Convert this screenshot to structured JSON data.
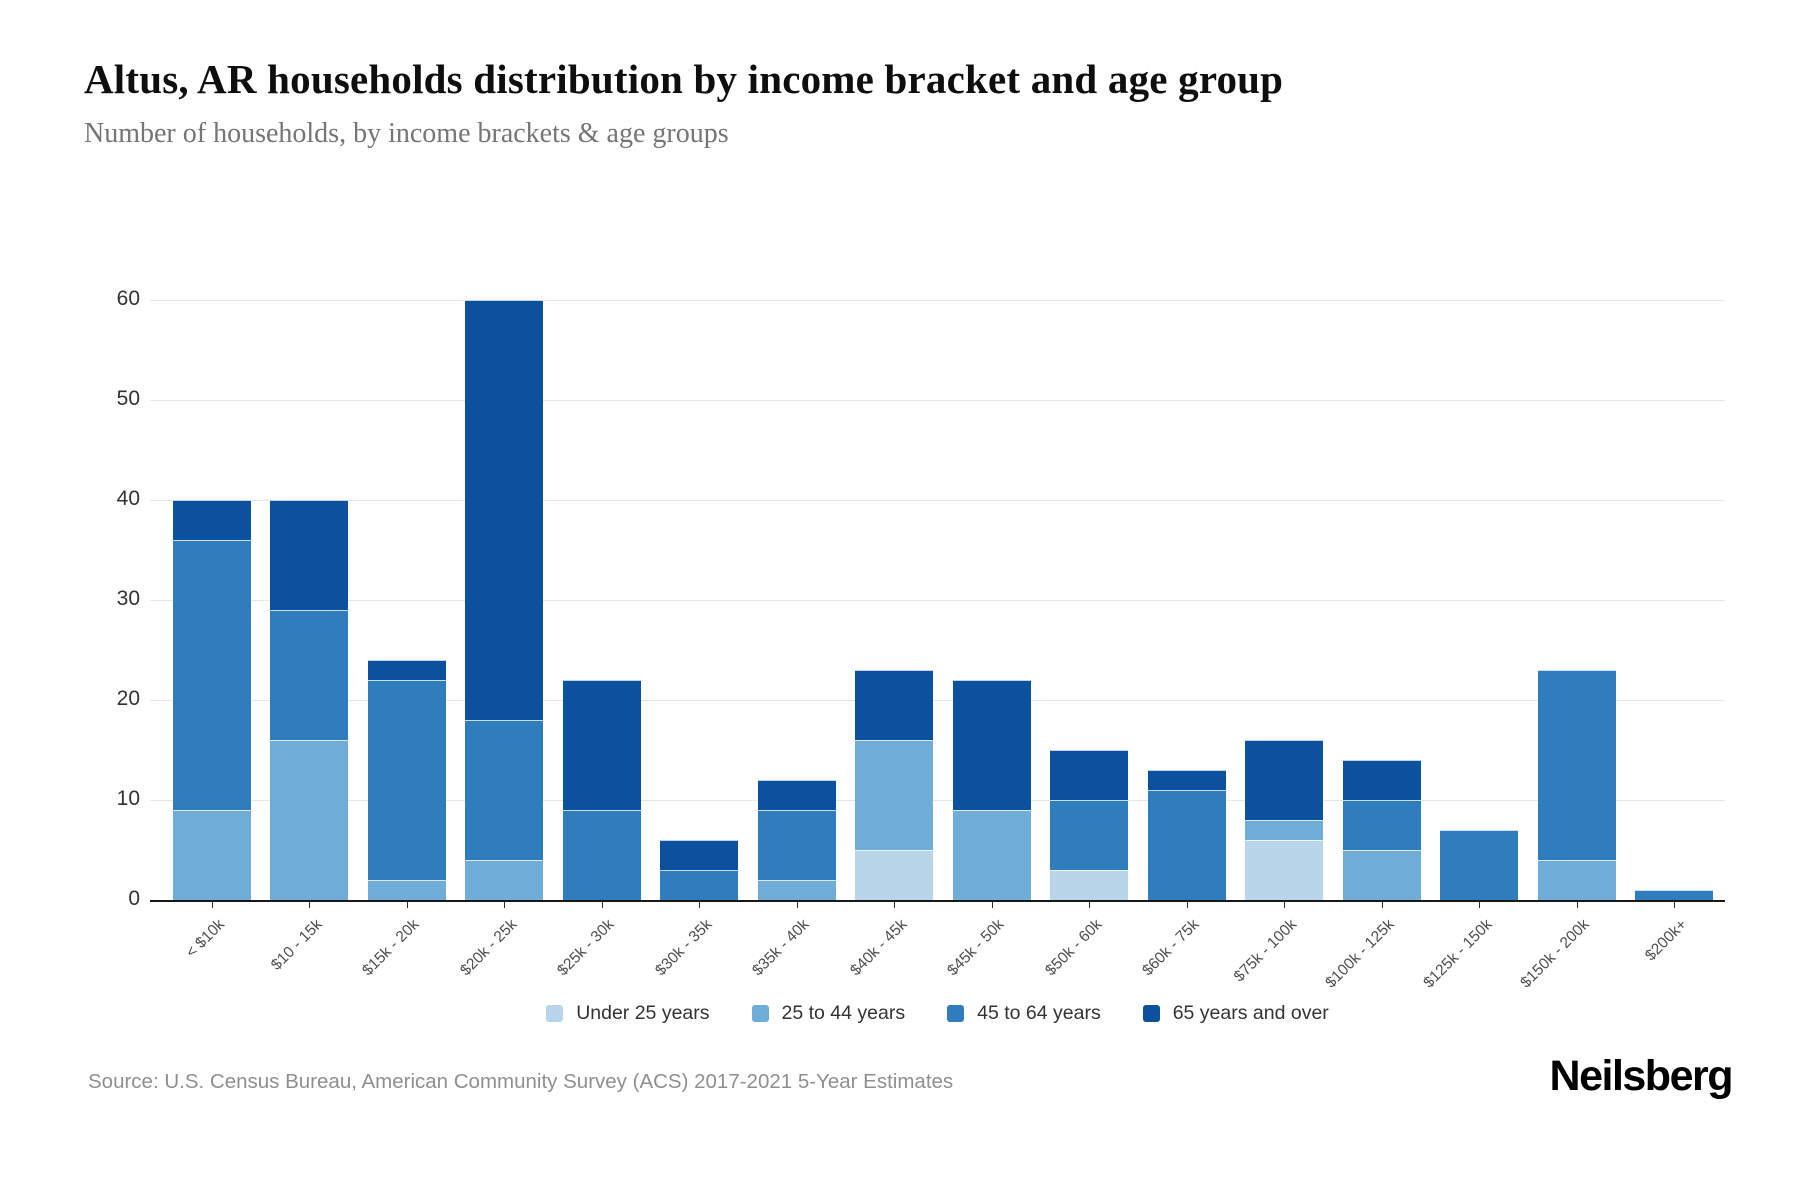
{
  "header": {
    "title": "Altus, AR households distribution by income bracket and age group",
    "subtitle": "Number of households, by income brackets & age groups"
  },
  "chart_data": {
    "type": "bar",
    "stacked": true,
    "title": "Altus, AR households distribution by income bracket and age group",
    "xlabel": "",
    "ylabel": "",
    "ylim": [
      0,
      60
    ],
    "yticks": [
      0,
      10,
      20,
      30,
      40,
      50,
      60
    ],
    "grid": true,
    "legend_position": "bottom",
    "categories": [
      "< $10k",
      "$10 - 15k",
      "$15k - 20k",
      "$20k - 25k",
      "$25k - 30k",
      "$30k - 35k",
      "$35k - 40k",
      "$40k - 45k",
      "$45k - 50k",
      "$50k - 60k",
      "$60k - 75k",
      "$75k - 100k",
      "$100k - 125k",
      "$125k - 150k",
      "$150k - 200k",
      "$200k+"
    ],
    "series": [
      {
        "name": "Under 25 years",
        "color": "#b9d5e9",
        "values": [
          0,
          0,
          0,
          0,
          0,
          0,
          0,
          5,
          0,
          3,
          0,
          6,
          0,
          0,
          0,
          0
        ]
      },
      {
        "name": "25 to 44 years",
        "color": "#6fadd8",
        "values": [
          9,
          16,
          2,
          4,
          0,
          0,
          2,
          11,
          9,
          0,
          0,
          2,
          5,
          0,
          4,
          0
        ]
      },
      {
        "name": "45 to 64 years",
        "color": "#2f7dbc",
        "values": [
          27,
          13,
          20,
          14,
          9,
          3,
          7,
          0,
          0,
          7,
          11,
          0,
          5,
          7,
          19,
          1
        ]
      },
      {
        "name": "65 years and over",
        "color": "#0b519e",
        "values": [
          4,
          11,
          2,
          42,
          13,
          3,
          3,
          7,
          13,
          5,
          2,
          8,
          4,
          0,
          0,
          0
        ]
      }
    ],
    "totals": [
      40,
      40,
      24,
      60,
      22,
      6,
      12,
      23,
      22,
      15,
      13,
      16,
      14,
      7,
      23,
      1
    ]
  },
  "footer": {
    "source": "Source: U.S. Census Bureau, American Community Survey (ACS) 2017-2021 5-Year Estimates",
    "brand": "Neilsberg"
  }
}
